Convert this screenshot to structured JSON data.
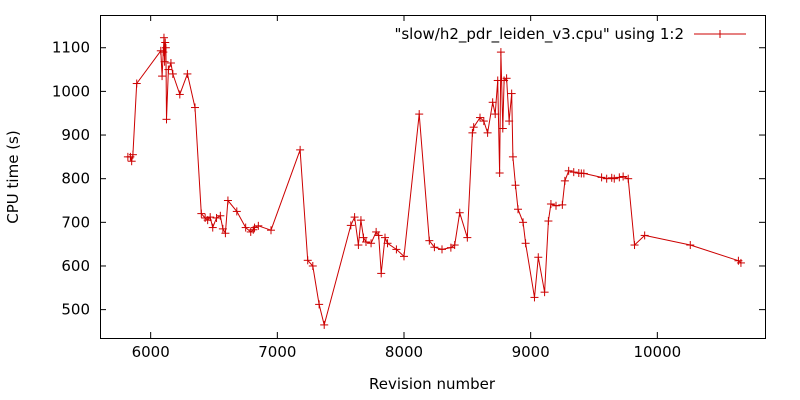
{
  "colors": {
    "series": "#cc0000",
    "axis": "#000000",
    "background": "#ffffff"
  },
  "chart_data": {
    "type": "line",
    "title": "",
    "xlabel": "Revision number",
    "ylabel": "CPU time (s)",
    "xlim": [
      5600,
      10850
    ],
    "ylim": [
      435,
      1175
    ],
    "xticks": [
      6000,
      7000,
      8000,
      9000,
      10000
    ],
    "yticks": [
      500,
      600,
      700,
      800,
      900,
      1000,
      1100
    ],
    "grid": false,
    "legend_position": "top-right",
    "series": [
      {
        "name": "\"slow/h2_pdr_leiden_v3.cpu\" using 1:2",
        "marker": "plus",
        "x": [
          5820,
          5840,
          5850,
          5860,
          5890,
          6080,
          6090,
          6100,
          6105,
          6110,
          6115,
          6120,
          6125,
          6140,
          6160,
          6175,
          6230,
          6290,
          6350,
          6400,
          6430,
          6450,
          6470,
          6490,
          6520,
          6550,
          6570,
          6590,
          6610,
          6680,
          6750,
          6790,
          6810,
          6820,
          6850,
          6950,
          7180,
          7240,
          7280,
          7330,
          7370,
          7580,
          7610,
          7640,
          7660,
          7680,
          7700,
          7740,
          7780,
          7800,
          7820,
          7850,
          7870,
          7940,
          8000,
          8120,
          8200,
          8240,
          8300,
          8370,
          8400,
          8440,
          8500,
          8540,
          8550,
          8600,
          8630,
          8660,
          8700,
          8720,
          8740,
          8755,
          8765,
          8780,
          8790,
          8810,
          8830,
          8850,
          8860,
          8880,
          8900,
          8940,
          8960,
          9030,
          9060,
          9110,
          9140,
          9160,
          9200,
          9250,
          9270,
          9300,
          9340,
          9380,
          9400,
          9420,
          9560,
          9600,
          9640,
          9660,
          9700,
          9730,
          9770,
          9820,
          9900,
          10260,
          10640,
          10660
        ],
        "y": [
          850,
          850,
          840,
          855,
          1018,
          1093,
          1035,
          1090,
          1123,
          1068,
          1112,
          1100,
          936,
          1050,
          1065,
          1040,
          993,
          1040,
          963,
          720,
          710,
          705,
          712,
          688,
          710,
          715,
          685,
          675,
          750,
          725,
          688,
          678,
          683,
          688,
          692,
          682,
          866,
          613,
          600,
          512,
          465,
          693,
          712,
          648,
          705,
          665,
          655,
          652,
          678,
          670,
          583,
          665,
          652,
          638,
          622,
          948,
          658,
          643,
          638,
          642,
          648,
          722,
          665,
          905,
          918,
          940,
          932,
          905,
          975,
          948,
          1025,
          813,
          1090,
          915,
          1025,
          1030,
          932,
          995,
          850,
          785,
          730,
          700,
          652,
          528,
          620,
          540,
          703,
          742,
          738,
          740,
          795,
          818,
          815,
          813,
          812,
          812,
          803,
          800,
          802,
          800,
          803,
          805,
          800,
          648,
          670,
          648,
          612,
          607
        ]
      }
    ]
  }
}
